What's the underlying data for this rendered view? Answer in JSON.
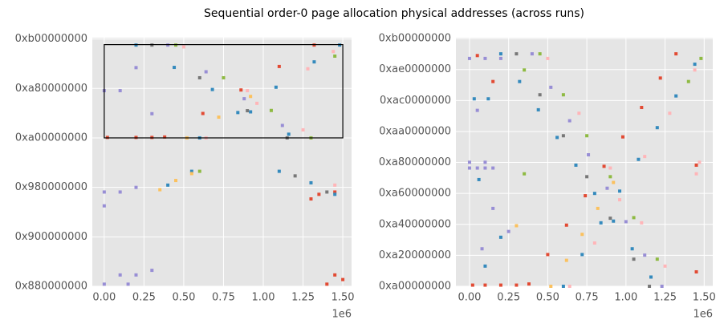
{
  "title": "Sequential order-0 page allocation physical addresses (across runs)",
  "chart_data": [
    {
      "type": "scatter",
      "grid": true,
      "x_offset_label": "1e6",
      "xlim": [
        -75000,
        1555000
      ],
      "ylim": [
        36507222016,
        47300000000
      ],
      "xticks": [
        {
          "value": 0,
          "label": "0.00"
        },
        {
          "value": 250000,
          "label": "0.25"
        },
        {
          "value": 500000,
          "label": "0.50"
        },
        {
          "value": 750000,
          "label": "0.75"
        },
        {
          "value": 1000000,
          "label": "1.00"
        },
        {
          "value": 1250000,
          "label": "1.25"
        },
        {
          "value": 1500000,
          "label": "1.50"
        }
      ],
      "yticks": [
        {
          "value": 36507222016,
          "label": "0x880000000"
        },
        {
          "value": 38654705664,
          "label": "0x900000000"
        },
        {
          "value": 40802189312,
          "label": "0x980000000"
        },
        {
          "value": 42949672960,
          "label": "0xa00000000"
        },
        {
          "value": 45097156608,
          "label": "0xa80000000"
        },
        {
          "value": 47244640256,
          "label": "0xb00000000"
        }
      ],
      "box": {
        "x": [
          0,
          1500000
        ],
        "y": [
          42949672960,
          47000000000
        ],
        "color": "#000000"
      },
      "series": [
        {
          "color": "#E24A33",
          "x": [
            380000,
            620000,
            860000,
            1100000,
            1320000,
            20000,
            200000,
            300000,
            1300000,
            1350000,
            1450000,
            1500000,
            1400000,
            1450000
          ],
          "values": [
            42990000000.0,
            44010000000.0,
            45030000000.0,
            46050000000.0,
            46980000000.0,
            42970000000.0,
            42970000000.0,
            42970000000.0,
            40300000000.0,
            40500000000.0,
            40600000000.0,
            36800000000.0,
            36600000000.0,
            37000000000.0
          ]
        },
        {
          "color": "#348ABD",
          "x": [
            200000,
            440000,
            680000,
            920000,
            1160000,
            600000,
            840000,
            1080000,
            1320000,
            1480000,
            400000,
            550000,
            1100000,
            1300000,
            1450000
          ],
          "values": [
            46980000000.0,
            46010000000.0,
            45050000000.0,
            44080000000.0,
            43110000000.0,
            42950000000.0,
            44050000000.0,
            45150000000.0,
            46250000000.0,
            46980000000.0,
            40900000000.0,
            41500000000.0,
            41500000000.0,
            41000000000.0,
            40500000000.0
          ]
        },
        {
          "color": "#988ED5",
          "x": [
            400000,
            640000,
            880000,
            1120000,
            0,
            100000,
            200000,
            300000,
            0,
            100000,
            200000,
            0,
            100000,
            200000,
            300000,
            0,
            150000
          ],
          "values": [
            46980000000.0,
            45820000000.0,
            44650000000.0,
            43490000000.0,
            45000000000.0,
            45000000000.0,
            46000000000.0,
            44000000000.0,
            40600000000.0,
            40600000000.0,
            40800000000.0,
            40000000000.0,
            37000000000.0,
            37000000000.0,
            37200000000.0,
            36600000000.0,
            36600000000.0
          ]
        },
        {
          "color": "#777777",
          "x": [
            300000,
            600000,
            900000,
            1150000,
            1200000,
            1400000
          ],
          "values": [
            46980000000.0,
            45560000000.0,
            44130000000.0,
            42950000000.0,
            41300000000.0,
            40600000000.0
          ]
        },
        {
          "color": "#FBC15E",
          "x": [
            520000,
            720000,
            920000,
            350000,
            450000,
            550000
          ],
          "values": [
            42950000000.0,
            43850000000.0,
            44750000000.0,
            40700000000.0,
            41100000000.0,
            41400000000.0
          ]
        },
        {
          "color": "#8EBA42",
          "x": [
            450000,
            750000,
            1050000,
            1300000,
            1450000,
            600000
          ],
          "values": [
            46980000000.0,
            45560000000.0,
            44140000000.0,
            42950000000.0,
            46500000000.0,
            41500000000.0
          ]
        },
        {
          "color": "#FFB5B8",
          "x": [
            640000,
            960000,
            1280000,
            1440000,
            500000,
            900000,
            1250000,
            1450000
          ],
          "values": [
            42950000000.0,
            44450000000.0,
            45950000000.0,
            46700000000.0,
            46900000000.0,
            45000000000.0,
            43300000000.0,
            40900000000.0
          ]
        }
      ]
    },
    {
      "type": "scatter",
      "grid": true,
      "x_offset_label": "1e6",
      "xlim": [
        -87000,
        1555000
      ],
      "ylim": [
        42949672960,
        47260000000
      ],
      "xticks": [
        {
          "value": 0,
          "label": "0.00"
        },
        {
          "value": 250000,
          "label": "0.25"
        },
        {
          "value": 500000,
          "label": "0.50"
        },
        {
          "value": 750000,
          "label": "0.75"
        },
        {
          "value": 1000000,
          "label": "1.00"
        },
        {
          "value": 1250000,
          "label": "1.25"
        },
        {
          "value": 1500000,
          "label": "1.50"
        }
      ],
      "yticks": [
        {
          "value": 42949672960,
          "label": "0xa00000000"
        },
        {
          "value": 43486543872,
          "label": "0xa20000000"
        },
        {
          "value": 44023414784,
          "label": "0xa40000000"
        },
        {
          "value": 44560285696,
          "label": "0xa60000000"
        },
        {
          "value": 45097156608,
          "label": "0xa80000000"
        },
        {
          "value": 45634027520,
          "label": "0xaa0000000"
        },
        {
          "value": 46170898432,
          "label": "0xac0000000"
        },
        {
          "value": 46707769344,
          "label": "0xae0000000"
        },
        {
          "value": 47244640256,
          "label": "0xb00000000"
        }
      ],
      "series": [
        {
          "color": "#E24A33",
          "x": [
            380000,
            500000,
            620000,
            740000,
            860000,
            980000,
            1100000,
            1220000,
            1320000,
            20000,
            100000,
            200000,
            300000,
            50000,
            150000,
            1450000,
            1450000
          ],
          "values": [
            42990000000.0,
            43500000000.0,
            44010000000.0,
            44520000000.0,
            45030000000.0,
            45540000000.0,
            46050000000.0,
            46560000000.0,
            46980000000.0,
            42970000000.0,
            42970000000.0,
            42970000000.0,
            42970000000.0,
            46950000000.0,
            46500000000.0,
            45050000000.0,
            43200000000.0
          ]
        },
        {
          "color": "#348ABD",
          "x": [
            200000,
            320000,
            440000,
            560000,
            680000,
            800000,
            920000,
            1040000,
            1160000,
            600000,
            720000,
            840000,
            960000,
            1080000,
            1200000,
            1320000,
            1440000,
            30000,
            120000,
            60000,
            200000,
            100000
          ],
          "values": [
            46980000000.0,
            46500000000.0,
            46010000000.0,
            45530000000.0,
            45050000000.0,
            44560000000.0,
            44080000000.0,
            43600000000.0,
            43110000000.0,
            42950000000.0,
            43500000000.0,
            44050000000.0,
            44600000000.0,
            45150000000.0,
            45700000000.0,
            46250000000.0,
            46800000000.0,
            46200000000.0,
            46200000000.0,
            44800000000.0,
            43800000000.0,
            43300000000.0
          ]
        },
        {
          "color": "#988ED5",
          "x": [
            400000,
            520000,
            640000,
            760000,
            880000,
            1000000,
            1120000,
            1230000,
            0,
            50000,
            100000,
            150000,
            0,
            100000,
            0,
            100000,
            200000,
            50000,
            150000,
            80000,
            250000
          ],
          "values": [
            46980000000.0,
            46400000000.0,
            45820000000.0,
            45230000000.0,
            44650000000.0,
            44070000000.0,
            43490000000.0,
            42950000000.0,
            45000000000.0,
            45000000000.0,
            45000000000.0,
            45000000000.0,
            45100000000.0,
            45100000000.0,
            46900000000.0,
            46900000000.0,
            46900000000.0,
            46000000000.0,
            44300000000.0,
            43600000000.0,
            43900000000.0
          ]
        },
        {
          "color": "#777777",
          "x": [
            300000,
            450000,
            600000,
            750000,
            900000,
            1050000,
            1150000
          ],
          "values": [
            46980000000.0,
            46270000000.0,
            45560000000.0,
            44850000000.0,
            44130000000.0,
            43420000000.0,
            42950000000.0
          ]
        },
        {
          "color": "#FBC15E",
          "x": [
            520000,
            620000,
            720000,
            820000,
            920000,
            300000
          ],
          "values": [
            42950000000.0,
            43400000000.0,
            43850000000.0,
            44300000000.0,
            44750000000.0,
            44000000000.0
          ]
        },
        {
          "color": "#8EBA42",
          "x": [
            450000,
            600000,
            750000,
            900000,
            1050000,
            1200000,
            1400000,
            1480000,
            350000,
            350000
          ],
          "values": [
            46980000000.0,
            46270000000.0,
            45560000000.0,
            44850000000.0,
            44140000000.0,
            43420000000.0,
            46500000000.0,
            46900000000.0,
            46700000000.0,
            44900000000.0
          ]
        },
        {
          "color": "#FFB5B8",
          "x": [
            640000,
            800000,
            960000,
            1120000,
            1280000,
            1440000,
            500000,
            700000,
            900000,
            1100000,
            1250000,
            1450000,
            1470000
          ],
          "values": [
            42950000000.0,
            43700000000.0,
            44450000000.0,
            45200000000.0,
            45950000000.0,
            46700000000.0,
            46900000000.0,
            45950000000.0,
            45000000000.0,
            44050000000.0,
            43300000000.0,
            44900000000.0,
            45100000000.0
          ]
        }
      ]
    }
  ]
}
